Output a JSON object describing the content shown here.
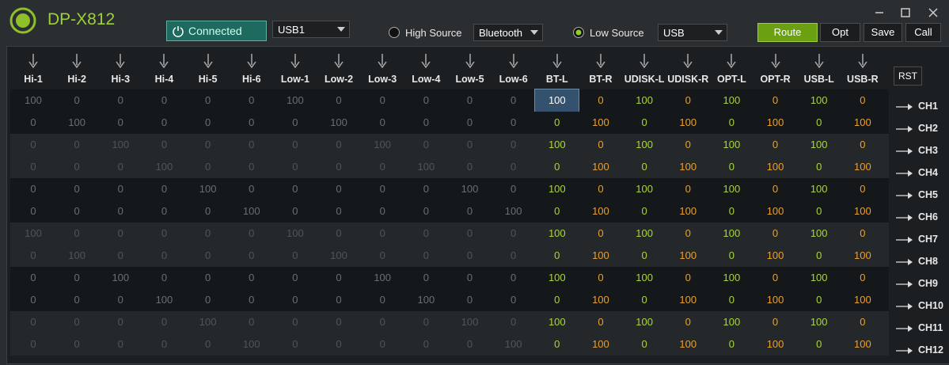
{
  "app": {
    "title": "DP-X812",
    "status": "Connected",
    "port": "USB1",
    "high_source": {
      "label": "High Source",
      "value": "Bluetooth"
    },
    "low_source": {
      "label": "Low Source",
      "value": "USB"
    },
    "buttons": [
      "Route",
      "Opt",
      "Save",
      "Call"
    ]
  },
  "matrix": {
    "columns": [
      "Hi-1",
      "Hi-2",
      "Hi-3",
      "Hi-4",
      "Hi-5",
      "Hi-6",
      "Low-1",
      "Low-2",
      "Low-3",
      "Low-4",
      "Low-5",
      "Low-6",
      "BT-L",
      "BT-R",
      "UDISK-L",
      "UDISK-R",
      "OPT-L",
      "OPT-R",
      "USB-L",
      "USB-R"
    ],
    "reset": "RST",
    "rows": [
      {
        "label": "CH1",
        "values": [
          100,
          0,
          0,
          0,
          0,
          0,
          100,
          0,
          0,
          0,
          0,
          0,
          100,
          0,
          100,
          0,
          100,
          0,
          100,
          0
        ]
      },
      {
        "label": "CH2",
        "values": [
          0,
          100,
          0,
          0,
          0,
          0,
          0,
          100,
          0,
          0,
          0,
          0,
          0,
          100,
          0,
          100,
          0,
          100,
          0,
          100
        ]
      },
      {
        "label": "CH3",
        "values": [
          0,
          0,
          100,
          0,
          0,
          0,
          0,
          0,
          100,
          0,
          0,
          0,
          100,
          0,
          100,
          0,
          100,
          0,
          100,
          0
        ]
      },
      {
        "label": "CH4",
        "values": [
          0,
          0,
          0,
          100,
          0,
          0,
          0,
          0,
          0,
          100,
          0,
          0,
          0,
          100,
          0,
          100,
          0,
          100,
          0,
          100
        ]
      },
      {
        "label": "CH5",
        "values": [
          0,
          0,
          0,
          0,
          100,
          0,
          0,
          0,
          0,
          0,
          100,
          0,
          100,
          0,
          100,
          0,
          100,
          0,
          100,
          0
        ]
      },
      {
        "label": "CH6",
        "values": [
          0,
          0,
          0,
          0,
          0,
          100,
          0,
          0,
          0,
          0,
          0,
          100,
          0,
          100,
          0,
          100,
          0,
          100,
          0,
          100
        ]
      },
      {
        "label": "CH7",
        "values": [
          100,
          0,
          0,
          0,
          0,
          0,
          100,
          0,
          0,
          0,
          0,
          0,
          100,
          0,
          100,
          0,
          100,
          0,
          100,
          0
        ]
      },
      {
        "label": "CH8",
        "values": [
          0,
          100,
          0,
          0,
          0,
          0,
          0,
          100,
          0,
          0,
          0,
          0,
          0,
          100,
          0,
          100,
          0,
          100,
          0,
          100
        ]
      },
      {
        "label": "CH9",
        "values": [
          0,
          0,
          100,
          0,
          0,
          0,
          0,
          0,
          100,
          0,
          0,
          0,
          100,
          0,
          100,
          0,
          100,
          0,
          100,
          0
        ]
      },
      {
        "label": "CH10",
        "values": [
          0,
          0,
          0,
          100,
          0,
          0,
          0,
          0,
          0,
          100,
          0,
          0,
          0,
          100,
          0,
          100,
          0,
          100,
          0,
          100
        ]
      },
      {
        "label": "CH11",
        "values": [
          0,
          0,
          0,
          0,
          100,
          0,
          0,
          0,
          0,
          0,
          100,
          0,
          100,
          0,
          100,
          0,
          100,
          0,
          100,
          0
        ]
      },
      {
        "label": "CH12",
        "values": [
          0,
          0,
          0,
          0,
          0,
          100,
          0,
          0,
          0,
          0,
          0,
          100,
          0,
          100,
          0,
          100,
          0,
          100,
          0,
          100
        ]
      }
    ]
  }
}
